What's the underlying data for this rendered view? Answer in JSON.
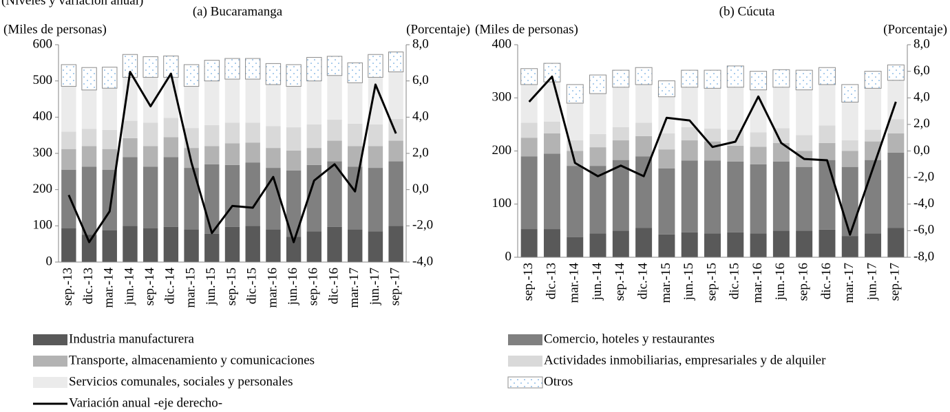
{
  "header": "(Niveles y variación anual)",
  "chart_data": [
    {
      "type": "bar",
      "stacked": true,
      "title": "(a) Bucaramanga",
      "ylabel": "(Miles de personas)",
      "y2label": "(Porcentaje)",
      "categories": [
        "sep.-13",
        "dic.-13",
        "mar.-14",
        "jun.-14",
        "sep.-14",
        "dic.-14",
        "mar.-15",
        "jun.-15",
        "sep.-15",
        "dic.-15",
        "mar.-16",
        "jun.-16",
        "sep.-16",
        "dic.-16",
        "mar.-17",
        "jun.-17",
        "sep.-17"
      ],
      "ylim": [
        0,
        600
      ],
      "yticks": [
        0,
        100,
        200,
        300,
        400,
        500,
        600
      ],
      "y2lim": [
        -4,
        8
      ],
      "y2ticks": [
        {
          "value": -4,
          "label": "-4,0"
        },
        {
          "value": -2,
          "label": "-2,0"
        },
        {
          "value": 0,
          "label": "0,0"
        },
        {
          "value": 2,
          "label": "2,0"
        },
        {
          "value": 4,
          "label": "4,0"
        },
        {
          "value": 6,
          "label": "6,0"
        },
        {
          "value": 8,
          "label": "8,0"
        }
      ],
      "series": [
        {
          "name": "Industria manufacturera",
          "color": "#595959",
          "values": [
            93,
            75,
            88,
            100,
            93,
            97,
            90,
            78,
            97,
            100,
            90,
            70,
            85,
            97,
            90,
            85,
            100
          ]
        },
        {
          "name": "Comercio, hoteles y restaurantes",
          "color": "#808080",
          "values": [
            162,
            188,
            167,
            190,
            170,
            193,
            170,
            192,
            171,
            175,
            170,
            183,
            183,
            181,
            173,
            175,
            178
          ]
        },
        {
          "name": "Transporte, almacenamiento y comunicaciones",
          "color": "#b3b3b3",
          "values": [
            57,
            57,
            57,
            52,
            57,
            55,
            55,
            50,
            60,
            55,
            55,
            55,
            47,
            57,
            57,
            60,
            57
          ]
        },
        {
          "name": "Actividades inmobiliarias, empresariales y de alquiler",
          "color": "#d9d9d9",
          "values": [
            48,
            48,
            53,
            48,
            65,
            53,
            55,
            58,
            57,
            55,
            60,
            64,
            65,
            58,
            62,
            60,
            60
          ]
        },
        {
          "name": "Servicios comunales, sociales y personales",
          "color": "#ebebeb",
          "values": [
            125,
            107,
            115,
            120,
            125,
            112,
            115,
            122,
            120,
            120,
            115,
            113,
            120,
            122,
            113,
            130,
            130
          ]
        },
        {
          "name": "Otros",
          "color": "#8fbce6",
          "pattern": "dots",
          "values": [
            60,
            62,
            58,
            63,
            57,
            59,
            60,
            57,
            57,
            57,
            58,
            60,
            65,
            53,
            55,
            63,
            55
          ]
        },
        {
          "name": "Variación anual -eje derecho-",
          "color": "#000000",
          "type": "line",
          "axis": "y2",
          "values": [
            -0.3,
            -2.9,
            -1.2,
            6.5,
            4.6,
            6.4,
            1.5,
            -2.4,
            -0.9,
            -1.0,
            0.7,
            -2.9,
            0.5,
            1.4,
            -0.1,
            5.8,
            3.1
          ]
        }
      ]
    },
    {
      "type": "bar",
      "stacked": true,
      "title": "(b) Cúcuta",
      "ylabel": "(Miles de personas)",
      "y2label": "(Porcentaje)",
      "categories": [
        "sep.-13",
        "dic.-13",
        "mar.-14",
        "jun.-14",
        "sep.-14",
        "dic.-14",
        "mar.-15",
        "jun.-15",
        "sep.-15",
        "dic.-15",
        "mar.-16",
        "jun.-16",
        "sep.-16",
        "dic.-16",
        "mar.-17",
        "jun.-17",
        "sep.-17"
      ],
      "ylim": [
        0,
        400
      ],
      "yticks": [
        0,
        100,
        200,
        300,
        400
      ],
      "y2lim": [
        -8,
        8
      ],
      "y2ticks": [
        {
          "value": -8,
          "label": "-8,0"
        },
        {
          "value": -6,
          "label": "-6,0"
        },
        {
          "value": -4,
          "label": "-4,0"
        },
        {
          "value": -2,
          "label": "-2,0"
        },
        {
          "value": 0,
          "label": "0,0"
        },
        {
          "value": 2,
          "label": "2,0"
        },
        {
          "value": 4,
          "label": "4,0"
        },
        {
          "value": 6,
          "label": "6,0"
        },
        {
          "value": 8,
          "label": "8,0"
        }
      ],
      "series": [
        {
          "name": "Industria manufacturera",
          "color": "#595959",
          "values": [
            53,
            53,
            38,
            45,
            50,
            55,
            43,
            47,
            45,
            47,
            45,
            50,
            50,
            52,
            40,
            45,
            55
          ]
        },
        {
          "name": "Comercio, hoteles y restaurantes",
          "color": "#808080",
          "values": [
            137,
            142,
            134,
            127,
            133,
            135,
            124,
            135,
            137,
            133,
            130,
            130,
            120,
            131,
            130,
            138,
            142
          ]
        },
        {
          "name": "Transporte, almacenamiento y comunicaciones",
          "color": "#b3b3b3",
          "values": [
            35,
            38,
            28,
            35,
            37,
            38,
            36,
            38,
            36,
            30,
            33,
            35,
            30,
            32,
            30,
            35,
            36
          ]
        },
        {
          "name": "Actividades inmobiliarias, empresariales y de alquiler",
          "color": "#d9d9d9",
          "values": [
            28,
            22,
            20,
            25,
            25,
            25,
            30,
            25,
            24,
            30,
            27,
            28,
            30,
            33,
            20,
            22,
            27
          ]
        },
        {
          "name": "Servicios comunales, sociales y personales",
          "color": "#ebebeb",
          "values": [
            72,
            75,
            70,
            76,
            75,
            72,
            69,
            75,
            76,
            80,
            80,
            77,
            85,
            77,
            72,
            78,
            73
          ]
        },
        {
          "name": "Otros",
          "color": "#8fbce6",
          "pattern": "dots",
          "values": [
            30,
            35,
            35,
            35,
            32,
            32,
            30,
            32,
            34,
            40,
            35,
            33,
            37,
            32,
            33,
            32,
            29
          ]
        },
        {
          "name": "Variación anual -eje derecho-",
          "color": "#000000",
          "type": "line",
          "axis": "y2",
          "values": [
            3.7,
            5.6,
            -0.9,
            -1.9,
            -1.1,
            -1.9,
            2.5,
            2.3,
            0.3,
            0.7,
            4.1,
            0.6,
            -0.6,
            -0.7,
            -6.3,
            -1.3,
            3.7
          ]
        }
      ]
    }
  ]
}
